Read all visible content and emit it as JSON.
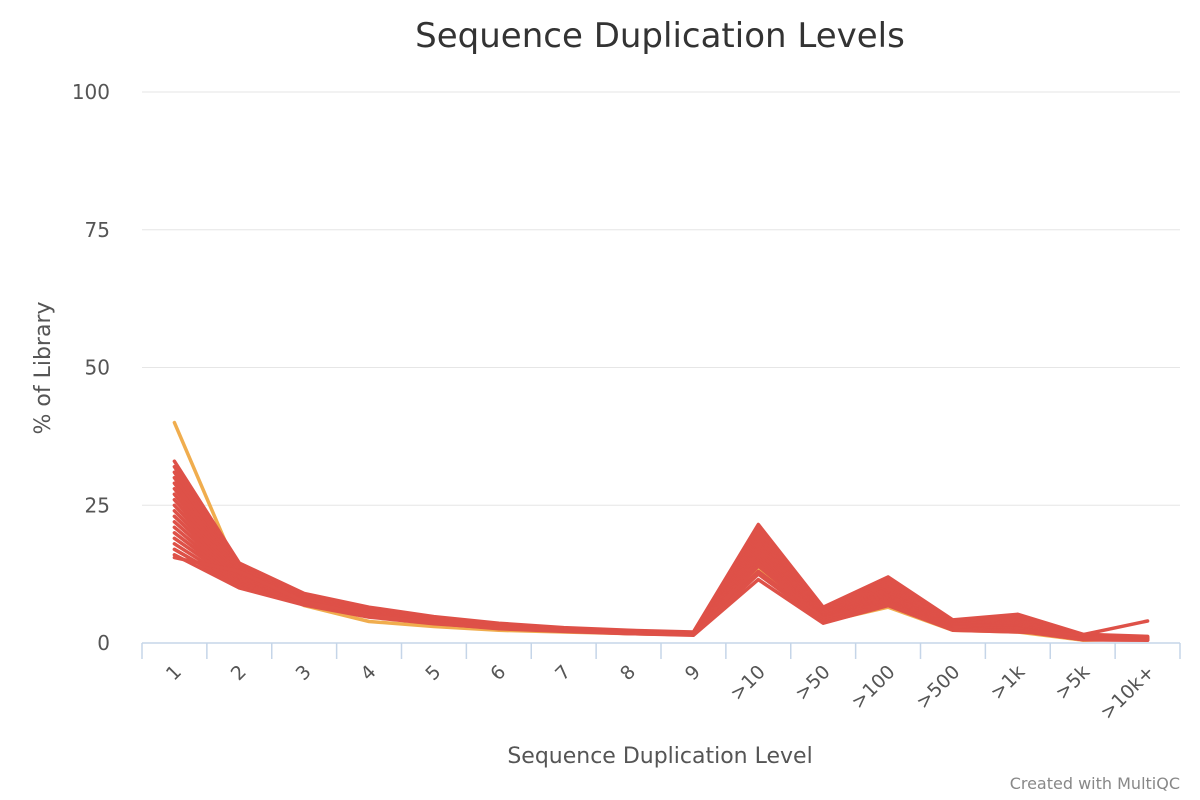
{
  "chart_data": {
    "type": "line",
    "title": "Sequence Duplication Levels",
    "xlabel": "Sequence Duplication Level",
    "ylabel": "% of Library",
    "credit": "Created with MultiQC",
    "categories": [
      "1",
      "2",
      "3",
      "4",
      "5",
      "6",
      "7",
      "8",
      "9",
      ">10",
      ">50",
      ">100",
      ">500",
      ">1k",
      ">5k",
      ">10k+"
    ],
    "ylim": [
      0,
      100
    ],
    "yticks": [
      0,
      25,
      50,
      75,
      100
    ],
    "grid": true,
    "legend": "none",
    "colors": {
      "main": "#de5148",
      "highlight": "#f0ad4e"
    },
    "series": [
      {
        "color": "#f0ad4e",
        "values": [
          40.0,
          12.5,
          6.8,
          3.9,
          3.0,
          2.3,
          2.0,
          1.7,
          1.5,
          13.8,
          3.8,
          6.5,
          2.3,
          2.0,
          0.5,
          0.8
        ]
      },
      {
        "color": "#de5148",
        "values": [
          33.0,
          14.5,
          9.0,
          6.5,
          4.8,
          3.6,
          2.8,
          2.3,
          2.0,
          21.5,
          6.5,
          12.0,
          4.2,
          5.2,
          1.6,
          1.2
        ]
      },
      {
        "color": "#de5148",
        "values": [
          32.0,
          14.0,
          8.8,
          6.3,
          4.7,
          3.5,
          2.7,
          2.2,
          1.9,
          21.0,
          6.2,
          11.5,
          4.0,
          5.0,
          1.4,
          1.1
        ]
      },
      {
        "color": "#de5148",
        "values": [
          31.0,
          13.8,
          8.7,
          6.2,
          4.6,
          3.4,
          2.7,
          2.2,
          1.9,
          20.5,
          6.0,
          11.0,
          3.9,
          4.8,
          1.3,
          1.0
        ]
      },
      {
        "color": "#de5148",
        "values": [
          30.0,
          13.5,
          8.6,
          6.1,
          4.5,
          3.4,
          2.6,
          2.1,
          1.9,
          20.0,
          5.8,
          10.6,
          3.8,
          4.6,
          1.2,
          1.0
        ]
      },
      {
        "color": "#de5148",
        "values": [
          29.0,
          13.3,
          8.5,
          6.0,
          4.4,
          3.3,
          2.6,
          2.1,
          1.8,
          19.5,
          5.6,
          10.2,
          3.7,
          4.4,
          1.1,
          0.9
        ]
      },
      {
        "color": "#de5148",
        "values": [
          28.0,
          13.0,
          8.4,
          5.9,
          4.4,
          3.3,
          2.6,
          2.1,
          1.8,
          19.0,
          5.5,
          9.8,
          3.6,
          4.2,
          1.0,
          0.9
        ]
      },
      {
        "color": "#de5148",
        "values": [
          27.0,
          12.8,
          8.3,
          5.8,
          4.3,
          3.2,
          2.5,
          2.0,
          1.8,
          18.5,
          5.3,
          9.5,
          3.5,
          4.0,
          1.0,
          0.8
        ]
      },
      {
        "color": "#de5148",
        "values": [
          26.0,
          12.5,
          8.2,
          5.7,
          4.2,
          3.2,
          2.5,
          2.0,
          1.7,
          18.0,
          5.2,
          9.2,
          3.4,
          3.8,
          0.9,
          0.8
        ]
      },
      {
        "color": "#de5148",
        "values": [
          25.0,
          12.3,
          8.1,
          5.6,
          4.2,
          3.1,
          2.5,
          2.0,
          1.7,
          17.5,
          5.0,
          9.0,
          3.3,
          3.6,
          0.9,
          0.8
        ]
      },
      {
        "color": "#de5148",
        "values": [
          24.0,
          12.0,
          8.0,
          5.5,
          4.1,
          3.1,
          2.4,
          2.0,
          1.7,
          17.0,
          4.9,
          8.7,
          3.2,
          3.4,
          0.8,
          0.7
        ]
      },
      {
        "color": "#de5148",
        "values": [
          23.0,
          11.8,
          7.9,
          5.4,
          4.0,
          3.0,
          2.4,
          1.9,
          1.7,
          16.5,
          4.8,
          8.5,
          3.1,
          3.2,
          0.8,
          0.7
        ]
      },
      {
        "color": "#de5148",
        "values": [
          22.0,
          11.5,
          7.8,
          5.3,
          4.0,
          3.0,
          2.4,
          1.9,
          1.6,
          16.0,
          4.7,
          8.2,
          3.0,
          3.0,
          0.8,
          0.7
        ]
      },
      {
        "color": "#de5148",
        "values": [
          21.0,
          11.2,
          7.6,
          5.2,
          3.9,
          2.9,
          2.3,
          1.9,
          1.6,
          15.5,
          4.6,
          8.0,
          2.9,
          2.8,
          0.7,
          0.6
        ]
      },
      {
        "color": "#de5148",
        "values": [
          20.0,
          11.0,
          7.5,
          5.1,
          3.8,
          2.9,
          2.3,
          1.8,
          1.6,
          15.0,
          4.5,
          7.8,
          2.8,
          2.7,
          0.7,
          0.6
        ]
      },
      {
        "color": "#de5148",
        "values": [
          19.0,
          10.8,
          7.3,
          5.0,
          3.7,
          2.8,
          2.3,
          1.8,
          1.6,
          14.5,
          4.4,
          7.6,
          2.7,
          2.6,
          0.7,
          0.6
        ]
      },
      {
        "color": "#de5148",
        "values": [
          18.0,
          10.5,
          7.2,
          4.9,
          3.7,
          2.8,
          2.2,
          1.8,
          1.5,
          14.0,
          4.3,
          7.4,
          2.6,
          2.5,
          0.6,
          0.6
        ]
      },
      {
        "color": "#de5148",
        "values": [
          17.0,
          10.2,
          7.0,
          4.8,
          3.6,
          2.7,
          2.2,
          1.8,
          1.5,
          13.0,
          4.0,
          7.2,
          2.5,
          2.3,
          0.6,
          0.5
        ]
      },
      {
        "color": "#de5148",
        "values": [
          16.0,
          10.0,
          6.9,
          4.7,
          3.5,
          2.7,
          2.2,
          1.7,
          1.5,
          12.5,
          3.9,
          7.0,
          2.4,
          2.2,
          0.6,
          0.5
        ]
      },
      {
        "color": "#de5148",
        "values": [
          15.5,
          13.0,
          7.5,
          5.0,
          3.6,
          2.6,
          2.1,
          1.7,
          1.4,
          11.5,
          3.6,
          6.8,
          2.3,
          2.0,
          1.5,
          4.0
        ]
      }
    ]
  }
}
